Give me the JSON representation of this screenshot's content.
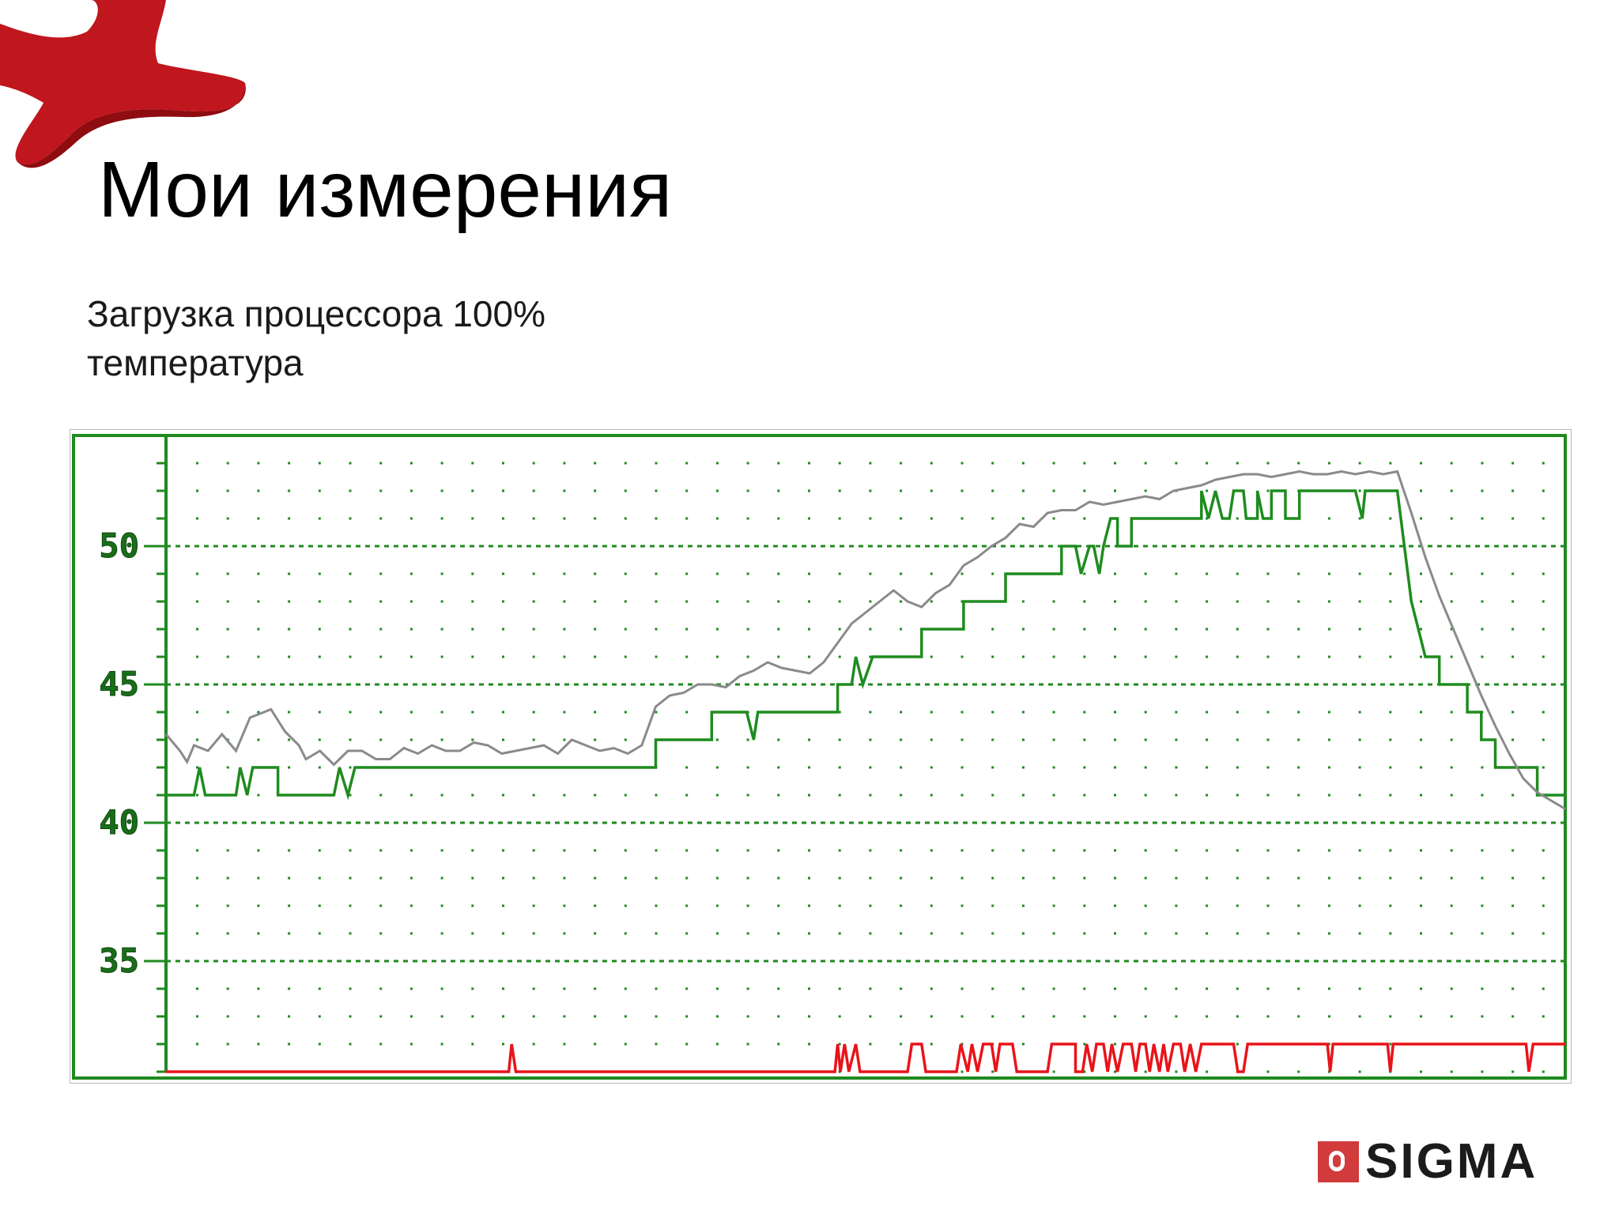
{
  "slide": {
    "title": "Мои измерения",
    "subtitle_lines": [
      "Загрузка процессора 100%",
      "температура"
    ],
    "logo_text": "SIGMA",
    "decor_icon": "red-star-shape"
  },
  "colors": {
    "frame": "#1f8a1f",
    "grid": "#1f8a1f",
    "temp_sensor_1": "#1e8c1e",
    "temp_sensor_2": "#8a8a8a",
    "cpu_load": "#e8141a",
    "logo_mark": "#d13b3b",
    "decor": "#c0161d"
  },
  "chart_data": {
    "type": "line",
    "ylim": [
      31,
      54
    ],
    "xlim": [
      0,
      100
    ],
    "y_ticks": [
      "50",
      "45",
      "40",
      "35"
    ],
    "y_tick_values": [
      50,
      45,
      40,
      35
    ],
    "grid": true,
    "series": [
      {
        "key": "temp_sensor_1",
        "style": "step",
        "points": [
          [
            0,
            41
          ],
          [
            2,
            41
          ],
          [
            2.4,
            42
          ],
          [
            2.8,
            41
          ],
          [
            5,
            41
          ],
          [
            5.3,
            42
          ],
          [
            5.8,
            41
          ],
          [
            6.2,
            42
          ],
          [
            8,
            42
          ],
          [
            8,
            41
          ],
          [
            12,
            41
          ],
          [
            12.4,
            42
          ],
          [
            13,
            41
          ],
          [
            13.5,
            42
          ],
          [
            14,
            42
          ],
          [
            16,
            42
          ],
          [
            30,
            42
          ],
          [
            35,
            42
          ],
          [
            35,
            43
          ],
          [
            39,
            43
          ],
          [
            39,
            44
          ],
          [
            41.5,
            44
          ],
          [
            42,
            43
          ],
          [
            42.3,
            44
          ],
          [
            48,
            44
          ],
          [
            48,
            45
          ],
          [
            49,
            45
          ],
          [
            49.3,
            46
          ],
          [
            49.8,
            45
          ],
          [
            50.5,
            46
          ],
          [
            54,
            46
          ],
          [
            54,
            47
          ],
          [
            57,
            47
          ],
          [
            57,
            48
          ],
          [
            60,
            48
          ],
          [
            60,
            49
          ],
          [
            64,
            49
          ],
          [
            64,
            50
          ],
          [
            65,
            50
          ],
          [
            65.4,
            49
          ],
          [
            66,
            50
          ],
          [
            66.3,
            50
          ],
          [
            66.7,
            49
          ],
          [
            67,
            50
          ],
          [
            67.5,
            51
          ],
          [
            68,
            51
          ],
          [
            68,
            50
          ],
          [
            69,
            50
          ],
          [
            69,
            51
          ],
          [
            74,
            51
          ],
          [
            74,
            52
          ],
          [
            74.5,
            51
          ],
          [
            75,
            52
          ],
          [
            75.5,
            51
          ],
          [
            76,
            51
          ],
          [
            76.3,
            52
          ],
          [
            77,
            52
          ],
          [
            77.2,
            51
          ],
          [
            78,
            51
          ],
          [
            78,
            52
          ],
          [
            78.4,
            51
          ],
          [
            79,
            51
          ],
          [
            79,
            52
          ],
          [
            80,
            52
          ],
          [
            80,
            51
          ],
          [
            81,
            51
          ],
          [
            81,
            52
          ],
          [
            85,
            52
          ],
          [
            85.5,
            51
          ],
          [
            85.7,
            52
          ],
          [
            88,
            52
          ],
          [
            88,
            52
          ],
          [
            88.5,
            50
          ],
          [
            89,
            48
          ],
          [
            89.5,
            47
          ],
          [
            90,
            46
          ],
          [
            91,
            46
          ],
          [
            91,
            45
          ],
          [
            93,
            45
          ],
          [
            93,
            44
          ],
          [
            94,
            44
          ],
          [
            94,
            43
          ],
          [
            95,
            43
          ],
          [
            95,
            42
          ],
          [
            98,
            42
          ],
          [
            98,
            41
          ],
          [
            100,
            41
          ]
        ]
      },
      {
        "key": "temp_sensor_2",
        "style": "line",
        "points": [
          [
            0,
            43.2
          ],
          [
            1,
            42.6
          ],
          [
            1.5,
            42.2
          ],
          [
            2,
            42.8
          ],
          [
            3,
            42.6
          ],
          [
            4,
            43.2
          ],
          [
            5,
            42.6
          ],
          [
            6,
            43.8
          ],
          [
            7.5,
            44.1
          ],
          [
            8.5,
            43.3
          ],
          [
            9.5,
            42.8
          ],
          [
            10,
            42.3
          ],
          [
            11,
            42.6
          ],
          [
            12,
            42.1
          ],
          [
            13,
            42.6
          ],
          [
            14,
            42.6
          ],
          [
            15,
            42.3
          ],
          [
            16,
            42.3
          ],
          [
            17,
            42.7
          ],
          [
            18,
            42.5
          ],
          [
            19,
            42.8
          ],
          [
            20,
            42.6
          ],
          [
            21,
            42.6
          ],
          [
            22,
            42.9
          ],
          [
            23,
            42.8
          ],
          [
            24,
            42.5
          ],
          [
            25,
            42.6
          ],
          [
            26,
            42.7
          ],
          [
            27,
            42.8
          ],
          [
            28,
            42.5
          ],
          [
            29,
            43
          ],
          [
            30,
            42.8
          ],
          [
            31,
            42.6
          ],
          [
            32,
            42.7
          ],
          [
            33,
            42.5
          ],
          [
            34,
            42.8
          ],
          [
            35,
            44.2
          ],
          [
            36,
            44.6
          ],
          [
            37,
            44.7
          ],
          [
            38,
            45
          ],
          [
            39,
            45
          ],
          [
            40,
            44.9
          ],
          [
            41,
            45.3
          ],
          [
            42,
            45.5
          ],
          [
            43,
            45.8
          ],
          [
            44,
            45.6
          ],
          [
            45,
            45.5
          ],
          [
            46,
            45.4
          ],
          [
            47,
            45.8
          ],
          [
            48,
            46.5
          ],
          [
            49,
            47.2
          ],
          [
            50,
            47.6
          ],
          [
            51,
            48
          ],
          [
            52,
            48.4
          ],
          [
            53,
            48
          ],
          [
            54,
            47.8
          ],
          [
            55,
            48.3
          ],
          [
            56,
            48.6
          ],
          [
            57,
            49.3
          ],
          [
            58,
            49.6
          ],
          [
            59,
            50
          ],
          [
            60,
            50.3
          ],
          [
            61,
            50.8
          ],
          [
            62,
            50.7
          ],
          [
            63,
            51.2
          ],
          [
            64,
            51.3
          ],
          [
            65,
            51.3
          ],
          [
            66,
            51.6
          ],
          [
            67,
            51.5
          ],
          [
            68,
            51.6
          ],
          [
            69,
            51.7
          ],
          [
            70,
            51.8
          ],
          [
            71,
            51.7
          ],
          [
            72,
            52
          ],
          [
            73,
            52.1
          ],
          [
            74,
            52.2
          ],
          [
            75,
            52.4
          ],
          [
            76,
            52.5
          ],
          [
            77,
            52.6
          ],
          [
            78,
            52.6
          ],
          [
            79,
            52.5
          ],
          [
            80,
            52.6
          ],
          [
            81,
            52.7
          ],
          [
            82,
            52.6
          ],
          [
            83,
            52.6
          ],
          [
            84,
            52.7
          ],
          [
            85,
            52.6
          ],
          [
            86,
            52.7
          ],
          [
            87,
            52.6
          ],
          [
            88,
            52.7
          ],
          [
            89,
            51.2
          ],
          [
            90,
            49.6
          ],
          [
            91,
            48.2
          ],
          [
            92,
            47
          ],
          [
            93,
            45.8
          ],
          [
            94,
            44.6
          ],
          [
            95,
            43.5
          ],
          [
            96,
            42.5
          ],
          [
            97,
            41.6
          ],
          [
            98,
            41.1
          ],
          [
            99,
            40.8
          ],
          [
            100,
            40.5
          ]
        ]
      },
      {
        "key": "cpu_load",
        "style": "step",
        "points": [
          [
            0,
            31
          ],
          [
            24.5,
            31
          ],
          [
            24.7,
            32
          ],
          [
            25,
            31
          ],
          [
            47.8,
            31
          ],
          [
            48,
            32
          ],
          [
            48.2,
            31
          ],
          [
            48.5,
            32
          ],
          [
            48.8,
            31
          ],
          [
            49.3,
            32
          ],
          [
            49.6,
            31
          ],
          [
            53,
            31
          ],
          [
            53.3,
            32
          ],
          [
            54,
            32
          ],
          [
            54.3,
            31
          ],
          [
            56.5,
            31
          ],
          [
            56.8,
            32
          ],
          [
            57.3,
            31
          ],
          [
            57.6,
            32
          ],
          [
            58,
            31
          ],
          [
            58.4,
            32
          ],
          [
            59,
            32
          ],
          [
            59.3,
            31
          ],
          [
            59.6,
            32
          ],
          [
            60.5,
            32
          ],
          [
            60.8,
            31
          ],
          [
            63,
            31
          ],
          [
            63.3,
            32
          ],
          [
            65,
            32
          ],
          [
            65,
            31
          ],
          [
            65.5,
            31
          ],
          [
            65.8,
            32
          ],
          [
            66.2,
            31
          ],
          [
            66.5,
            32
          ],
          [
            67,
            32
          ],
          [
            67.3,
            31
          ],
          [
            67.6,
            32
          ],
          [
            68,
            31
          ],
          [
            68.4,
            32
          ],
          [
            69,
            32
          ],
          [
            69.3,
            31
          ],
          [
            69.6,
            32
          ],
          [
            70,
            32
          ],
          [
            70.3,
            31
          ],
          [
            70.6,
            32
          ],
          [
            71,
            31
          ],
          [
            71.3,
            32
          ],
          [
            71.6,
            31
          ],
          [
            72,
            32
          ],
          [
            72.5,
            32
          ],
          [
            72.8,
            31
          ],
          [
            73.2,
            32
          ],
          [
            73.6,
            31
          ],
          [
            74,
            32
          ],
          [
            76.3,
            32
          ],
          [
            76.6,
            31
          ],
          [
            77,
            31
          ],
          [
            77.3,
            32
          ],
          [
            83,
            32
          ],
          [
            83.2,
            31
          ],
          [
            83.4,
            32
          ],
          [
            87.3,
            32
          ],
          [
            87.5,
            31
          ],
          [
            87.7,
            32
          ],
          [
            97.2,
            32
          ],
          [
            97.4,
            31
          ],
          [
            97.7,
            32
          ],
          [
            100,
            32
          ]
        ]
      }
    ]
  }
}
